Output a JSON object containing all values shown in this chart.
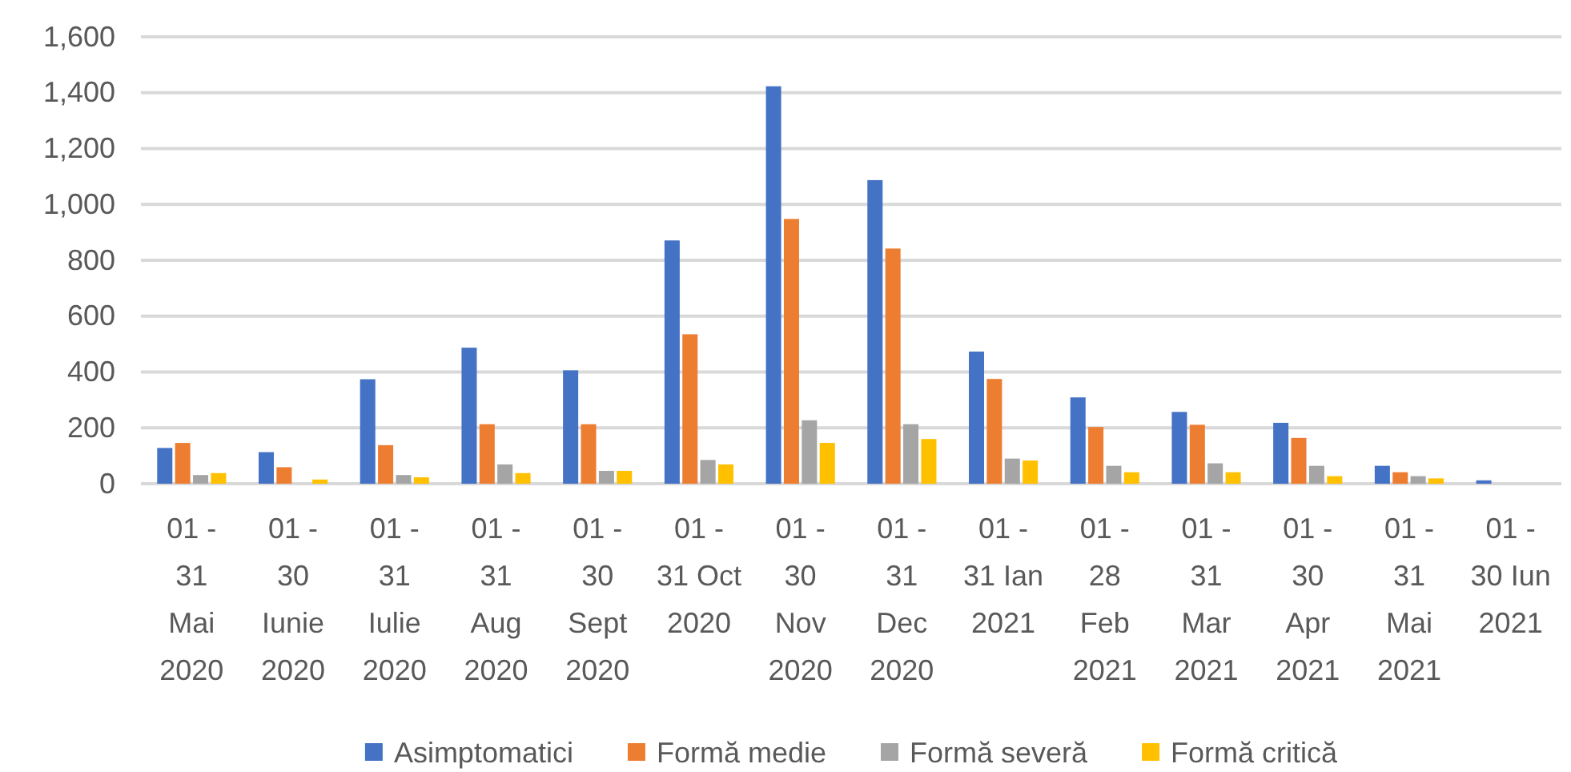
{
  "chart_data": {
    "type": "bar",
    "categories": [
      "01 -\n31\nMai\n2020",
      "01 -\n30\nIunie\n2020",
      "01 -\n31\nIulie\n2020",
      "01 -\n31\nAug\n2020",
      "01 -\n30\nSept\n2020",
      "01 -\n31 Oct\n2020",
      "01 -\n30\nNov\n2020",
      "01 -\n31\nDec\n2020",
      "01 -\n31 Ian\n2021",
      "01 -\n28\nFeb\n2021",
      "01 -\n31\nMar\n2021",
      "01 -\n30\nApr\n2021",
      "01 -\n31\nMai\n2021",
      "01 -\n30 Iun\n2021"
    ],
    "series": [
      {
        "name": "Asimptomatici",
        "color": "#4472c4",
        "values": [
          128,
          113,
          374,
          487,
          406,
          871,
          1423,
          1087,
          473,
          309,
          257,
          218,
          64,
          12
        ]
      },
      {
        "name": "Formă medie",
        "color": "#ed7d31",
        "values": [
          146,
          59,
          138,
          213,
          213,
          535,
          948,
          842,
          375,
          203,
          211,
          164,
          41,
          null
        ]
      },
      {
        "name": "Formă severă",
        "color": "#a5a5a5",
        "values": [
          31,
          null,
          31,
          69,
          46,
          85,
          227,
          213,
          90,
          64,
          73,
          64,
          27,
          null
        ]
      },
      {
        "name": "Formă critică",
        "color": "#ffc000",
        "values": [
          38,
          15,
          23,
          38,
          46,
          69,
          146,
          160,
          83,
          41,
          41,
          27,
          19,
          null
        ]
      }
    ],
    "ylim": [
      0,
      1600
    ],
    "yticks": [
      0,
      200,
      400,
      600,
      800,
      {
        "value": 1000,
        "label": "1,000"
      },
      {
        "value": 1200,
        "label": "1,200"
      },
      {
        "value": 1400,
        "label": "1,400"
      },
      {
        "value": 1600,
        "label": "1,600"
      }
    ],
    "grid": "y",
    "legend": "bottom"
  }
}
